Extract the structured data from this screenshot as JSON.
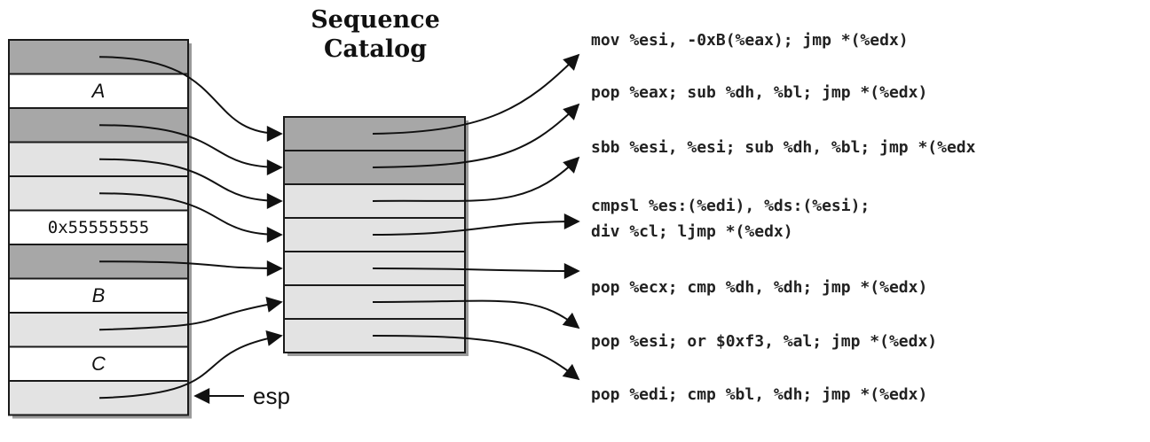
{
  "title": {
    "line1": "Sequence",
    "line2": "Catalog"
  },
  "stack": {
    "cells": [
      {
        "shade": "dark",
        "label": ""
      },
      {
        "shade": "white",
        "label": "A"
      },
      {
        "shade": "dark",
        "label": ""
      },
      {
        "shade": "light",
        "label": ""
      },
      {
        "shade": "light",
        "label": ""
      },
      {
        "shade": "white",
        "label": "0x55555555"
      },
      {
        "shade": "dark",
        "label": ""
      },
      {
        "shade": "white",
        "label": "B"
      },
      {
        "shade": "light",
        "label": ""
      },
      {
        "shade": "white",
        "label": "C"
      },
      {
        "shade": "light",
        "label": ""
      }
    ],
    "esp_label": "esp"
  },
  "catalog": {
    "cells": [
      {
        "shade": "dark"
      },
      {
        "shade": "dark"
      },
      {
        "shade": "light"
      },
      {
        "shade": "light"
      },
      {
        "shade": "light"
      },
      {
        "shade": "light"
      },
      {
        "shade": "light"
      }
    ]
  },
  "instructions": [
    {
      "text": "mov %esi, -0xB(%eax); jmp *(%edx)"
    },
    {
      "text": "pop %eax; sub %dh, %bl; jmp *(%edx)"
    },
    {
      "text": "sbb %esi, %esi; sub %dh, %bl; jmp *(%edx"
    },
    {
      "text": "cmpsl %es:(%edi), %ds:(%esi);\ndiv %cl; ljmp *(%edx)"
    },
    {
      "text": "pop %ecx; cmp %dh, %dh; jmp *(%edx)"
    },
    {
      "text": "pop %esi; or $0xf3, %al; jmp *(%edx)"
    },
    {
      "text": "pop %edi; cmp %bl, %dh; jmp *(%edx)"
    }
  ],
  "colors": {
    "dark": "#a7a7a7",
    "light": "#e3e3e3",
    "white": "#ffffff",
    "stroke": "#1a1a1a",
    "shadow": "#9a9a9a"
  }
}
